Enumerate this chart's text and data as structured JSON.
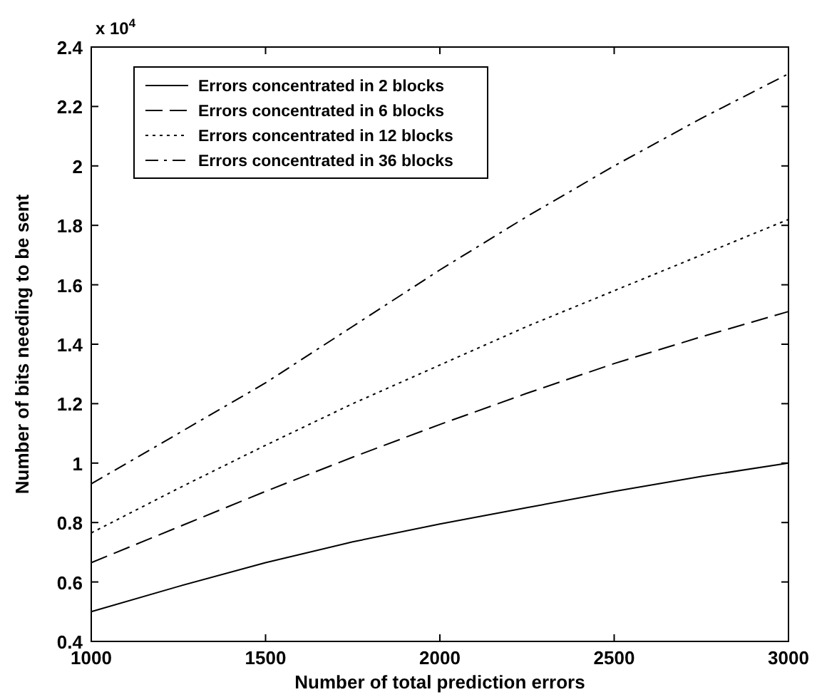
{
  "chart_data": {
    "type": "line",
    "xlabel": "Number of total prediction errors",
    "ylabel": "Number of bits needing to be sent",
    "annotations": [
      "x 10$^{4}$"
    ],
    "x": [
      1000,
      1250,
      1500,
      1750,
      2000,
      2250,
      2500,
      2750,
      3000
    ],
    "series": [
      {
        "name": "Errors concentrated in 2 blocks",
        "color": "#000000",
        "line_style": "solid",
        "values": [
          0.5,
          0.585,
          0.665,
          0.735,
          0.795,
          0.85,
          0.905,
          0.955,
          1.0
        ]
      },
      {
        "name": "Errors concentrated in 6 blocks",
        "color": "#000000",
        "line_style": "dashed",
        "values": [
          0.665,
          0.785,
          0.905,
          1.02,
          1.13,
          1.235,
          1.335,
          1.425,
          1.51
        ]
      },
      {
        "name": "Errors concentrated in 12 blocks",
        "color": "#000000",
        "line_style": "dotted",
        "values": [
          0.765,
          0.915,
          1.06,
          1.2,
          1.33,
          1.46,
          1.58,
          1.7,
          1.82
        ]
      },
      {
        "name": "Errors concentrated in 36 blocks",
        "color": "#000000",
        "line_style": "dashdot",
        "values": [
          0.93,
          1.1,
          1.27,
          1.46,
          1.65,
          1.83,
          2.0,
          2.16,
          2.31
        ]
      }
    ],
    "xlim": [
      1000,
      3000
    ],
    "xticks": [
      1000,
      1500,
      2000,
      2500,
      3000
    ],
    "ylim": [
      0.4,
      2.4
    ],
    "yticks": [
      0.4,
      0.6,
      0.8,
      1,
      1.2,
      1.4,
      1.6,
      1.8,
      2,
      2.2,
      2.4
    ],
    "grid": false,
    "legend": "top left",
    "marker": "none"
  }
}
